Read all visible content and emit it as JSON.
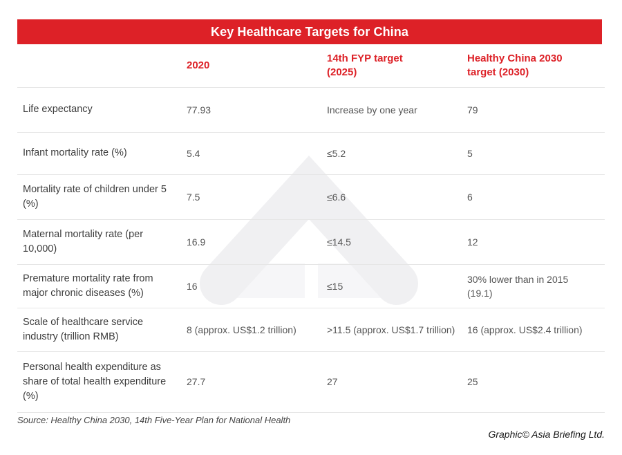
{
  "title": "Key Healthcare Targets for China",
  "table": {
    "columns": [
      "",
      "2020",
      "14th FYP target (2025)",
      "Healthy China 2030 target (2030)"
    ],
    "rows": [
      {
        "label": "Life expectancy",
        "y2020": "77.93",
        "fyp2025": "Increase by one year",
        "hc2030": "79"
      },
      {
        "label": "Infant mortality rate (%)",
        "y2020": "5.4",
        "fyp2025": "≤5.2",
        "hc2030": "5"
      },
      {
        "label": "Mortality rate of children under 5 (%)",
        "y2020": "7.5",
        "fyp2025": "≤6.6",
        "hc2030": "6"
      },
      {
        "label": "Maternal mortality rate (per 10,000)",
        "y2020": "16.9",
        "fyp2025": "≤14.5",
        "hc2030": "12"
      },
      {
        "label": "Premature mortality rate from major chronic diseases (%)",
        "y2020": "16",
        "fyp2025": "≤15",
        "hc2030": "30% lower than in 2015 (19.1)"
      },
      {
        "label": "Scale of healthcare service industry (trillion RMB)",
        "y2020": "8 (approx. US$1.2 trillion)",
        "fyp2025": ">11.5 (approx. US$1.7 trillion)",
        "hc2030": "16 (approx. US$2.4 trillion)"
      },
      {
        "label": "Personal health expenditure as share of total health expenditure (%)",
        "y2020": "27.7",
        "fyp2025": "27",
        "hc2030": "25"
      }
    ]
  },
  "footer": {
    "source": "Source: Healthy China 2030, 14th Five-Year Plan for National Health",
    "credit": "Graphic© Asia Briefing Ltd."
  },
  "colors": {
    "accent_red": "#dd2127",
    "watermark_gray": "#f0f0f2",
    "watermark_light_gray": "#f6f6f8",
    "separator": "#e6e6e6"
  },
  "icons": {
    "watermark": "asia-briefing-chevron-logo-watermark"
  }
}
